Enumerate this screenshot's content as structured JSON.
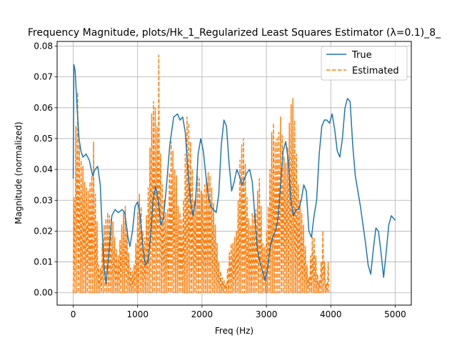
{
  "chart_data": {
    "type": "line",
    "title": "Frequency Magnitude, plots/Hk_1_Regularized Least Squares Estimator (λ=0.1)_8_",
    "xlabel": "Freq (Hz)",
    "ylabel": "Magnitude (normalized)",
    "xlim": [
      -250,
      5250
    ],
    "ylim": [
      -0.004,
      0.0815
    ],
    "xticks": [
      0,
      1000,
      2000,
      3000,
      4000,
      5000
    ],
    "xtick_labels": [
      "0",
      "1000",
      "2000",
      "3000",
      "4000",
      "5000"
    ],
    "yticks": [
      0.0,
      0.01,
      0.02,
      0.03,
      0.04,
      0.05,
      0.06,
      0.07,
      0.08
    ],
    "ytick_labels": [
      "0.00",
      "0.01",
      "0.02",
      "0.03",
      "0.04",
      "0.05",
      "0.06",
      "0.07",
      "0.08"
    ],
    "grid": true,
    "legend_position": "top-right",
    "series": [
      {
        "name": "True",
        "color": "#1f77b4",
        "style": "solid",
        "points": [
          [
            0,
            0.037
          ],
          [
            10,
            0.074
          ],
          [
            30,
            0.072
          ],
          [
            60,
            0.06
          ],
          [
            90,
            0.05
          ],
          [
            120,
            0.046
          ],
          [
            150,
            0.044
          ],
          [
            200,
            0.045
          ],
          [
            250,
            0.043
          ],
          [
            300,
            0.038
          ],
          [
            340,
            0.04
          ],
          [
            380,
            0.041
          ],
          [
            420,
            0.035
          ],
          [
            450,
            0.02
          ],
          [
            480,
            0.008
          ],
          [
            510,
            0.003
          ],
          [
            550,
            0.012
          ],
          [
            600,
            0.025
          ],
          [
            650,
            0.027
          ],
          [
            700,
            0.026
          ],
          [
            760,
            0.027
          ],
          [
            800,
            0.026
          ],
          [
            850,
            0.018
          ],
          [
            880,
            0.015
          ],
          [
            920,
            0.02
          ],
          [
            960,
            0.028
          ],
          [
            1000,
            0.0295
          ],
          [
            1040,
            0.025
          ],
          [
            1080,
            0.015
          ],
          [
            1120,
            0.009
          ],
          [
            1160,
            0.01
          ],
          [
            1200,
            0.018
          ],
          [
            1240,
            0.03
          ],
          [
            1280,
            0.0345
          ],
          [
            1320,
            0.03
          ],
          [
            1360,
            0.022
          ],
          [
            1400,
            0.024
          ],
          [
            1450,
            0.035
          ],
          [
            1500,
            0.048
          ],
          [
            1560,
            0.057
          ],
          [
            1620,
            0.058
          ],
          [
            1660,
            0.056
          ],
          [
            1700,
            0.057
          ],
          [
            1740,
            0.052
          ],
          [
            1780,
            0.04
          ],
          [
            1820,
            0.03
          ],
          [
            1860,
            0.025
          ],
          [
            1900,
            0.03
          ],
          [
            1940,
            0.045
          ],
          [
            1980,
            0.05
          ],
          [
            2020,
            0.046
          ],
          [
            2060,
            0.038
          ],
          [
            2100,
            0.031
          ],
          [
            2140,
            0.028
          ],
          [
            2180,
            0.027
          ],
          [
            2220,
            0.026
          ],
          [
            2260,
            0.032
          ],
          [
            2300,
            0.048
          ],
          [
            2340,
            0.056
          ],
          [
            2380,
            0.054
          ],
          [
            2420,
            0.042
          ],
          [
            2460,
            0.033
          ],
          [
            2500,
            0.036
          ],
          [
            2540,
            0.04
          ],
          [
            2580,
            0.038
          ],
          [
            2620,
            0.035
          ],
          [
            2660,
            0.037
          ],
          [
            2700,
            0.039
          ],
          [
            2740,
            0.04
          ],
          [
            2780,
            0.036
          ],
          [
            2820,
            0.025
          ],
          [
            2860,
            0.014
          ],
          [
            2900,
            0.01
          ],
          [
            2940,
            0.007
          ],
          [
            2980,
            0.004
          ],
          [
            3020,
            0.008
          ],
          [
            3060,
            0.015
          ],
          [
            3100,
            0.018
          ],
          [
            3140,
            0.02
          ],
          [
            3180,
            0.024
          ],
          [
            3220,
            0.035
          ],
          [
            3260,
            0.046
          ],
          [
            3300,
            0.049
          ],
          [
            3340,
            0.043
          ],
          [
            3380,
            0.03
          ],
          [
            3420,
            0.025
          ],
          [
            3460,
            0.027
          ],
          [
            3500,
            0.027
          ],
          [
            3540,
            0.03
          ],
          [
            3580,
            0.035
          ],
          [
            3620,
            0.033
          ],
          [
            3660,
            0.02
          ],
          [
            3700,
            0.018
          ],
          [
            3740,
            0.025
          ],
          [
            3780,
            0.03
          ],
          [
            3820,
            0.045
          ],
          [
            3860,
            0.054
          ],
          [
            3900,
            0.056
          ],
          [
            3940,
            0.056
          ],
          [
            3980,
            0.055
          ],
          [
            4020,
            0.058
          ],
          [
            4060,
            0.053
          ],
          [
            4100,
            0.046
          ],
          [
            4140,
            0.044
          ],
          [
            4180,
            0.05
          ],
          [
            4220,
            0.06
          ],
          [
            4260,
            0.063
          ],
          [
            4300,
            0.062
          ],
          [
            4340,
            0.048
          ],
          [
            4380,
            0.038
          ],
          [
            4420,
            0.033
          ],
          [
            4460,
            0.028
          ],
          [
            4500,
            0.022
          ],
          [
            4540,
            0.016
          ],
          [
            4580,
            0.009
          ],
          [
            4620,
            0.006
          ],
          [
            4660,
            0.014
          ],
          [
            4700,
            0.021
          ],
          [
            4740,
            0.02
          ],
          [
            4780,
            0.013
          ],
          [
            4820,
            0.005
          ],
          [
            4860,
            0.013
          ],
          [
            4900,
            0.022
          ],
          [
            4940,
            0.025
          ],
          [
            4980,
            0.024
          ],
          [
            5000,
            0.0235
          ]
        ]
      },
      {
        "name": "Estimated",
        "color": "#ff7f0e",
        "style": "dashed",
        "x_step": 27.4,
        "peaks": [
          0.031,
          0.054,
          0.065,
          0.048,
          0.043,
          0.041,
          0.036,
          0.034,
          0.033,
          0.036,
          0.038,
          0.049,
          0.032,
          0.023,
          0.009,
          0.008,
          0.016,
          0.022,
          0.024,
          0.026,
          0.025,
          0.024,
          0.023,
          0.018,
          0.014,
          0.012,
          0.017,
          0.022,
          0.026,
          0.028,
          0.021,
          0.013,
          0.008,
          0.007,
          0.009,
          0.016,
          0.026,
          0.032,
          0.028,
          0.02,
          0.018,
          0.025,
          0.034,
          0.047,
          0.058,
          0.062,
          0.06,
          0.054,
          0.077,
          0.045,
          0.035,
          0.03,
          0.026,
          0.027,
          0.039,
          0.049,
          0.046,
          0.04,
          0.038,
          0.028,
          0.026,
          0.024,
          0.03,
          0.045,
          0.057,
          0.055,
          0.049,
          0.04,
          0.03,
          0.032,
          0.038,
          0.037,
          0.033,
          0.032,
          0.035,
          0.037,
          0.039,
          0.038,
          0.034,
          0.029,
          0.022,
          0.016,
          0.01,
          0.007,
          0.005,
          0.004,
          0.003,
          0.008,
          0.013,
          0.016,
          0.016,
          0.018,
          0.02,
          0.03,
          0.043,
          0.048,
          0.05,
          0.042,
          0.031,
          0.024,
          0.022,
          0.026,
          0.025,
          0.027,
          0.033,
          0.037,
          0.028,
          0.016,
          0.015,
          0.02,
          0.028,
          0.04,
          0.052,
          0.055,
          0.049,
          0.05,
          0.052,
          0.057,
          0.051,
          0.044,
          0.042,
          0.047,
          0.055,
          0.061,
          0.063,
          0.056,
          0.045,
          0.035,
          0.03,
          0.026,
          0.022,
          0.015,
          0.009,
          0.005,
          0.012,
          0.018,
          0.018,
          0.012,
          0.006,
          0.004,
          0.01,
          0.02,
          0.01,
          0.003,
          0.01
        ]
      }
    ]
  }
}
